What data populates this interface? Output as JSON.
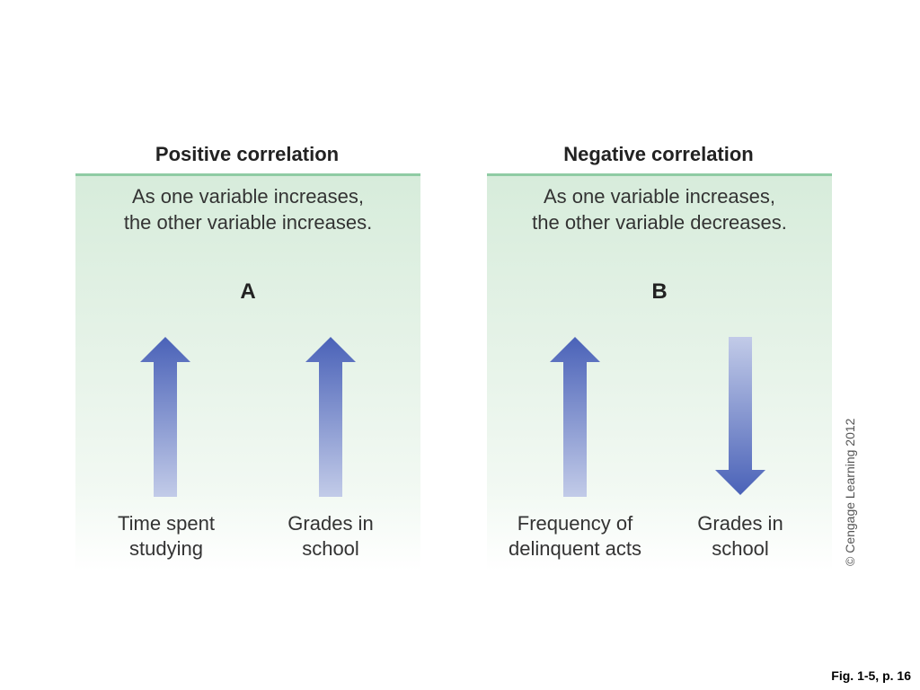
{
  "panels": [
    {
      "title": "Positive correlation",
      "description": [
        "As one variable increases,",
        "the other variable increases."
      ],
      "letter": "A",
      "variables": [
        {
          "label": [
            "Time spent",
            "studying"
          ],
          "arrow": "up"
        },
        {
          "label": [
            "Grades in",
            "school"
          ],
          "arrow": "up"
        }
      ]
    },
    {
      "title": "Negative correlation",
      "description": [
        "As one variable increases,",
        "the other variable decreases."
      ],
      "letter": "B",
      "variables": [
        {
          "label": [
            "Frequency of",
            "delinquent acts"
          ],
          "arrow": "up"
        },
        {
          "label": [
            "Grades in",
            "school"
          ],
          "arrow": "down"
        }
      ]
    }
  ],
  "copyright": "© Cengage Learning 2012",
  "caption": "Fig. 1-5, p. 16",
  "colors": {
    "arrow_dark": "#4a62b8",
    "arrow_light": "#c2cbe8",
    "panel_rule": "#8fcca4",
    "panel_fill": "#d7ecdb"
  }
}
